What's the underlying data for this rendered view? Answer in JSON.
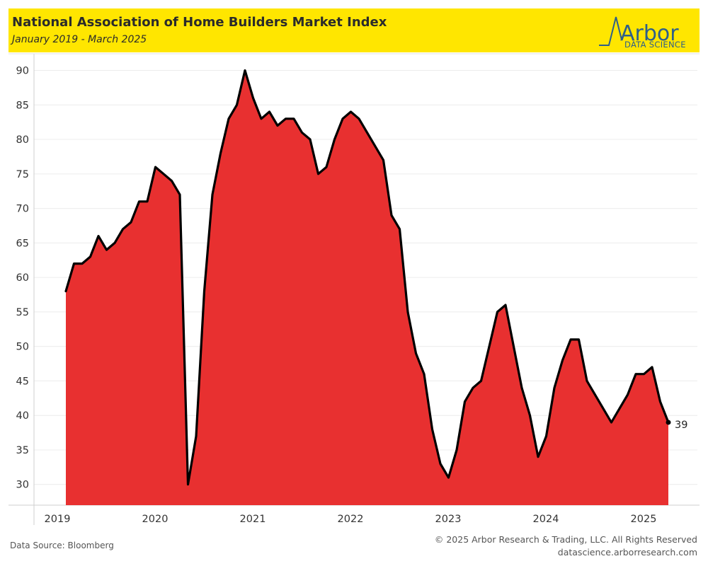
{
  "header": {
    "title": "National Association of Home Builders Market Index",
    "subtitle": "January 2019 - March 2025",
    "background": "#ffe600"
  },
  "logo": {
    "word": "Arbor",
    "tagline": "DATA SCIENCE",
    "color": "#2d5f8a"
  },
  "footer": {
    "source": "Data Source: Bloomberg",
    "copyright": "© 2025 Arbor Research & Trading, LLC. All Rights Reserved",
    "website": "datascience.arborresearch.com"
  },
  "chart_data": {
    "type": "area",
    "x_start": "2019-01",
    "x_tick_labels": [
      "2019",
      "2020",
      "2021",
      "2022",
      "2023",
      "2024",
      "2025"
    ],
    "y_tick_labels": [
      30,
      35,
      40,
      45,
      50,
      55,
      60,
      65,
      70,
      75,
      80,
      85,
      90
    ],
    "ylim": [
      27,
      92
    ],
    "fill_color": "#e83030",
    "line_color": "#000000",
    "end_label": "39",
    "grid": "horizontal",
    "series": [
      {
        "values": [
          58,
          62,
          62,
          63,
          66,
          64,
          65,
          67,
          68,
          71,
          71,
          76,
          75,
          74,
          72,
          30,
          37,
          58,
          72,
          78,
          83,
          85,
          90,
          86,
          83,
          84,
          82,
          83,
          83,
          81,
          80,
          75,
          76,
          80,
          83,
          84,
          83,
          81,
          79,
          77,
          69,
          67,
          55,
          49,
          46,
          38,
          33,
          31,
          35,
          42,
          44,
          45,
          50,
          55,
          56,
          50,
          44,
          40,
          34,
          37,
          44,
          48,
          51,
          51,
          45,
          43,
          41,
          39,
          41,
          43,
          46,
          46,
          47,
          42,
          39
        ]
      }
    ]
  }
}
